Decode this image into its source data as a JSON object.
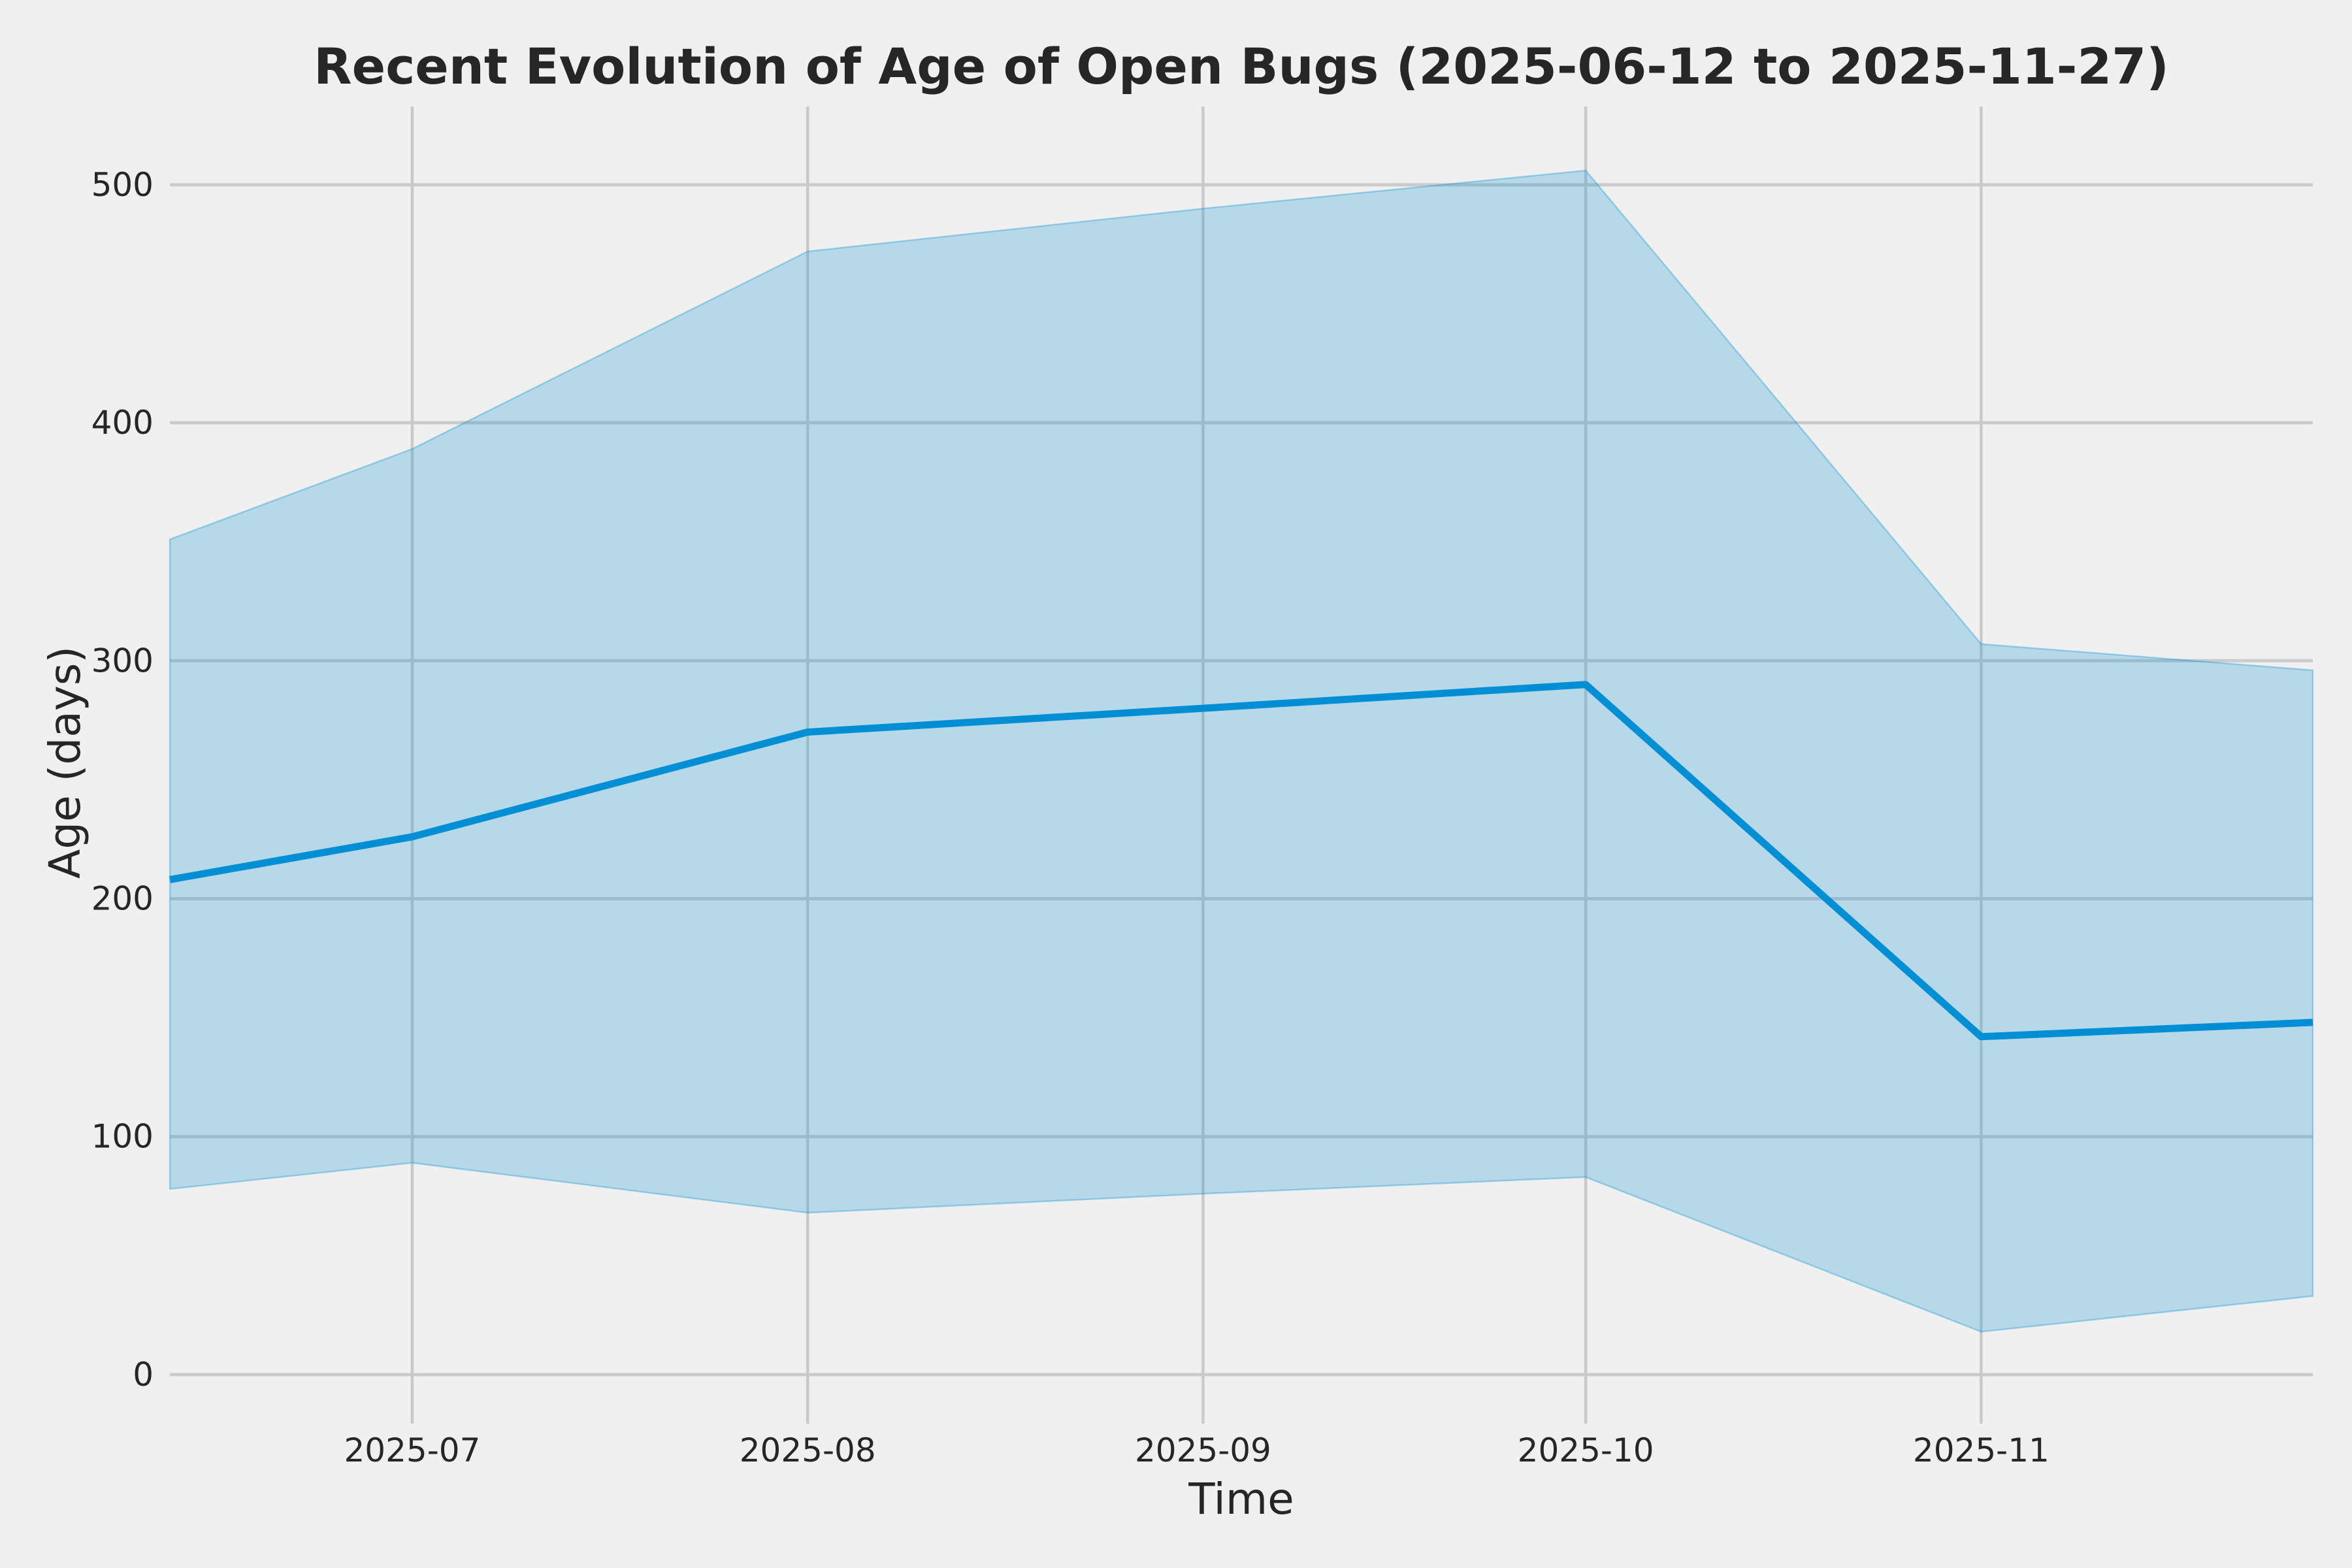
{
  "chart_data": {
    "type": "line",
    "title": "Recent Evolution of Age of Open Bugs (2025-06-12 to 2025-11-27)",
    "xlabel": "Time",
    "ylabel": "Age (days)",
    "x": [
      "2025-06-12",
      "2025-07-01",
      "2025-08-01",
      "2025-09-01",
      "2025-10-01",
      "2025-11-01",
      "2025-11-27"
    ],
    "series": [
      {
        "name": "median-age-line",
        "type": "line",
        "values": [
          208,
          226,
          270,
          280,
          290,
          142,
          148
        ]
      },
      {
        "name": "age-range-upper",
        "type": "band-upper",
        "values": [
          351,
          389,
          472,
          490,
          506,
          307,
          296
        ]
      },
      {
        "name": "age-range-lower",
        "type": "band-lower",
        "values": [
          78,
          89,
          68,
          76,
          83,
          18,
          33
        ]
      }
    ],
    "x_ticks": [
      {
        "date": "2025-07-01",
        "label": "2025-07"
      },
      {
        "date": "2025-08-01",
        "label": "2025-08"
      },
      {
        "date": "2025-09-01",
        "label": "2025-09"
      },
      {
        "date": "2025-10-01",
        "label": "2025-10"
      },
      {
        "date": "2025-11-01",
        "label": "2025-11"
      }
    ],
    "y_ticks": [
      {
        "value": 0,
        "label": "0"
      },
      {
        "value": 100,
        "label": "100"
      },
      {
        "value": 200,
        "label": "200"
      },
      {
        "value": 300,
        "label": "300"
      },
      {
        "value": 400,
        "label": "400"
      },
      {
        "value": 500,
        "label": "500"
      }
    ],
    "xlim": [
      "2025-06-12",
      "2025-11-27"
    ],
    "ylim": [
      -20.6,
      532.9
    ],
    "grid": true,
    "legend": "none",
    "colors": {
      "background": "#f0f0f0",
      "grid": "#cbcbcb",
      "line": "#008fd5",
      "band_fill": "#008fd5",
      "band_fill_opacity": 0.24,
      "band_edge_opacity": 0.32,
      "text": "#262626"
    }
  }
}
